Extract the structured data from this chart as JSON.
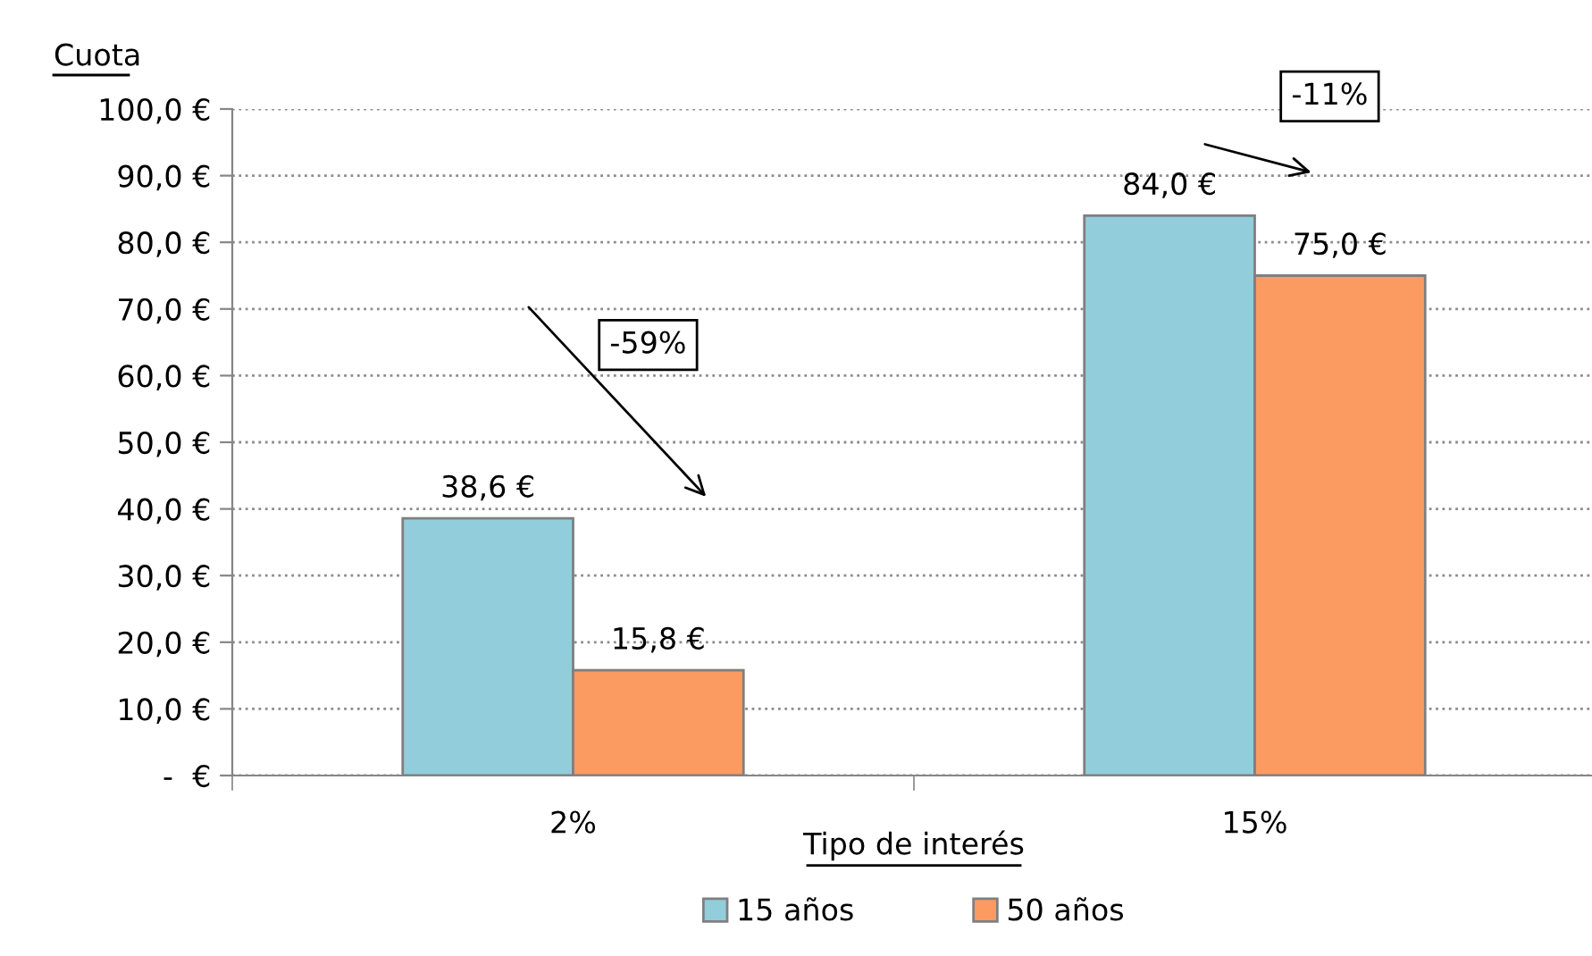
{
  "chart_data": {
    "type": "bar",
    "ylabel": "Cuota",
    "xlabel": "Tipo de interés",
    "categories": [
      "2%",
      "15%"
    ],
    "series": [
      {
        "name": "15 años",
        "color": "#92cddc",
        "values": [
          38.6,
          84.0
        ],
        "value_labels": [
          "38,6 €",
          "84,0 €"
        ]
      },
      {
        "name": "50 años",
        "color": "#fb9b62",
        "values": [
          15.8,
          75.0
        ],
        "value_labels": [
          "15,8 €",
          "75,0 €"
        ]
      }
    ],
    "ylim": [
      0,
      100
    ],
    "yticks": [
      {
        "value": 0,
        "label": "-  €"
      },
      {
        "value": 10,
        "label": "10,0 €"
      },
      {
        "value": 20,
        "label": "20,0 €"
      },
      {
        "value": 30,
        "label": "30,0 €"
      },
      {
        "value": 40,
        "label": "40,0 €"
      },
      {
        "value": 50,
        "label": "50,0 €"
      },
      {
        "value": 60,
        "label": "60,0 €"
      },
      {
        "value": 70,
        "label": "70,0 €"
      },
      {
        "value": 80,
        "label": "80,0 €"
      },
      {
        "value": 90,
        "label": "90,0 €"
      },
      {
        "value": 100,
        "label": "100,0 €"
      }
    ],
    "annotations": [
      "-59%",
      "-11%"
    ],
    "grid": "y",
    "legend": "bottom"
  }
}
